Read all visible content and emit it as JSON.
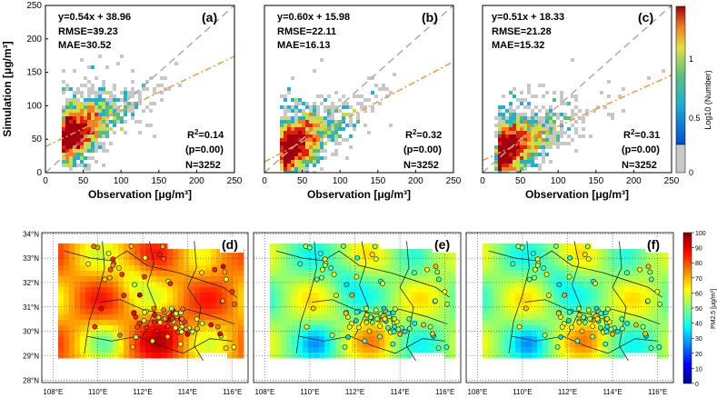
{
  "chart_data": [
    {
      "type": "scatter",
      "panel": "(a)",
      "xlabel": "Observation [μg/m³]",
      "ylabel": "Simulation [μg/m³]",
      "xlim": [
        0,
        250
      ],
      "ylim": [
        0,
        250
      ],
      "xticks": [
        "0",
        "50",
        "100",
        "150",
        "200",
        "250"
      ],
      "yticks": [
        "0",
        "50",
        "100",
        "150",
        "200",
        "250"
      ],
      "equation": "y=0.54x + 38.96",
      "rmse": "RMSE=39.23",
      "mae": "MAE=30.52",
      "r2_prefix": "R",
      "r2_sup": "2",
      "r2_value": "=0.14",
      "p": "(p=0.00)",
      "n": "N=3252",
      "slope": 0.54,
      "intercept": 38.96,
      "density_center": [
        35,
        55
      ]
    },
    {
      "type": "scatter",
      "panel": "(b)",
      "xlabel": "Observation [μg/m³]",
      "ylabel": "",
      "xlim": [
        0,
        250
      ],
      "ylim": [
        0,
        250
      ],
      "xticks": [
        "0",
        "50",
        "100",
        "150",
        "200",
        "250"
      ],
      "equation": "y=0.60x + 15.98",
      "rmse": "RMSE=22.11",
      "mae": "MAE=16.13",
      "r2_prefix": "R",
      "r2_sup": "2",
      "r2_value": "=0.32",
      "p": "(p=0.00)",
      "n": "N=3252",
      "slope": 0.6,
      "intercept": 15.98,
      "density_center": [
        35,
        35
      ]
    },
    {
      "type": "scatter",
      "panel": "(c)",
      "xlabel": "Observation [μg/m³]",
      "ylabel": "",
      "xlim": [
        0,
        250
      ],
      "ylim": [
        0,
        250
      ],
      "xticks": [
        "0",
        "50",
        "100",
        "150",
        "200",
        "250"
      ],
      "equation": "y=0.51x + 18.33",
      "rmse": "RMSE=21.28",
      "mae": "MAE=15.32",
      "r2_prefix": "R",
      "r2_sup": "2",
      "r2_value": "=0.31",
      "p": "(p=0.00)",
      "n": "N=3252",
      "slope": 0.51,
      "intercept": 18.33,
      "density_center": [
        32,
        32
      ]
    },
    {
      "type": "heatmap",
      "panel": "(d)",
      "lon_ticks": [
        "108°E",
        "110°E",
        "112°E",
        "114°E",
        "116°E"
      ],
      "lat_ticks": [
        "34°N",
        "33°N",
        "32°N",
        "31°N",
        "30°N",
        "29°N",
        "28°N"
      ],
      "pollutant": "PM2.5",
      "mean_level": 72
    },
    {
      "type": "heatmap",
      "panel": "(e)",
      "lon_ticks": [
        "108°E",
        "110°E",
        "112°E",
        "114°E",
        "116°E"
      ],
      "pollutant": "PM2.5",
      "mean_level": 52
    },
    {
      "type": "heatmap",
      "panel": "(f)",
      "lon_ticks": [
        "108°E",
        "110°E",
        "112°E",
        "114°E",
        "116°E"
      ],
      "pollutant": "PM2.5",
      "mean_level": 52
    }
  ],
  "scatter_colorbar": {
    "label": "Log10 (Number)",
    "ticks": [
      "0",
      "0.5",
      "1"
    ]
  },
  "map_colorbar": {
    "label": "PM2.5 [μg/m³]",
    "ticks": [
      "0",
      "10",
      "20",
      "30",
      "40",
      "50",
      "60",
      "70",
      "80",
      "90",
      "100"
    ]
  },
  "colors": {
    "fit_line": "#ee9a3a",
    "one_to_one": "#aaaaaa",
    "low_density": "#c8c8c8"
  }
}
